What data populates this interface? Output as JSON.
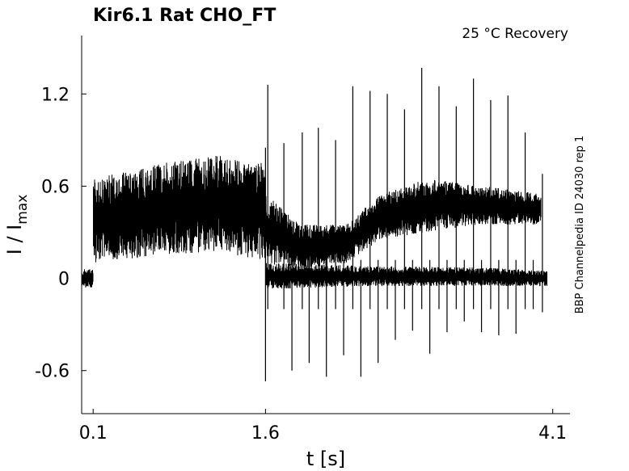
{
  "chart_data": {
    "type": "line",
    "title": "Kir6.1  Rat  CHO_FT",
    "condition": "25 °C  Recovery",
    "side_label": "BBP Channelpedia ID 24030 rep 1",
    "xlabel": "t [s]",
    "ylabel": "I / I",
    "ylabel_sub": "max",
    "xlim": [
      0.0,
      4.25
    ],
    "ylim": [
      -0.88,
      1.58
    ],
    "xticks": [
      {
        "value": 0.1,
        "label": "0.1"
      },
      {
        "value": 1.6,
        "label": "1.6"
      },
      {
        "value": 4.1,
        "label": "4.1"
      }
    ],
    "yticks": [
      {
        "value": 1.2,
        "label": "1.2"
      },
      {
        "value": 0.6,
        "label": "0.6"
      },
      {
        "value": 0,
        "label": "0"
      },
      {
        "value": -0.6,
        "label": "-0.6"
      }
    ],
    "grid": false,
    "line_color": "#000000",
    "bands": [
      {
        "x": [
          0.0,
          0.1
        ],
        "low": [
          -0.06,
          -0.06
        ],
        "high": [
          0.06,
          0.06
        ]
      },
      {
        "x": [
          0.1,
          0.7,
          1.2,
          1.6
        ],
        "low": [
          0.1,
          0.15,
          0.18,
          0.1
        ],
        "high": [
          0.65,
          0.75,
          0.8,
          0.75
        ]
      },
      {
        "x": [
          1.6,
          2.5,
          3.5,
          4.05
        ],
        "low": [
          -0.07,
          -0.05,
          -0.05,
          -0.05
        ],
        "high": [
          0.1,
          0.08,
          0.07,
          0.05
        ]
      },
      {
        "x": [
          1.6,
          1.9,
          2.3,
          2.6,
          3.0,
          3.5,
          4.0
        ],
        "low": [
          0.1,
          0.05,
          0.1,
          0.25,
          0.3,
          0.35,
          0.35
        ],
        "high": [
          0.55,
          0.35,
          0.35,
          0.55,
          0.65,
          0.6,
          0.55
        ]
      }
    ],
    "spikes": [
      {
        "t": 1.6,
        "min": -0.67,
        "max": 0.85
      },
      {
        "t": 1.62,
        "min": -0.2,
        "max": 1.26
      },
      {
        "t": 1.76,
        "min": -0.2,
        "max": 0.88
      },
      {
        "t": 1.83,
        "min": -0.6,
        "max": 0.12
      },
      {
        "t": 1.92,
        "min": -0.2,
        "max": 0.95
      },
      {
        "t": 1.98,
        "min": -0.55,
        "max": 0.12
      },
      {
        "t": 2.06,
        "min": -0.2,
        "max": 0.98
      },
      {
        "t": 2.13,
        "min": -0.64,
        "max": 0.12
      },
      {
        "t": 2.21,
        "min": -0.2,
        "max": 0.9
      },
      {
        "t": 2.28,
        "min": -0.5,
        "max": 0.12
      },
      {
        "t": 2.36,
        "min": -0.2,
        "max": 1.25
      },
      {
        "t": 2.43,
        "min": -0.64,
        "max": 0.12
      },
      {
        "t": 2.51,
        "min": -0.2,
        "max": 1.22
      },
      {
        "t": 2.58,
        "min": -0.55,
        "max": 0.12
      },
      {
        "t": 2.66,
        "min": -0.2,
        "max": 1.2
      },
      {
        "t": 2.73,
        "min": -0.4,
        "max": 0.12
      },
      {
        "t": 2.81,
        "min": -0.2,
        "max": 1.1
      },
      {
        "t": 2.88,
        "min": -0.34,
        "max": 0.12
      },
      {
        "t": 2.96,
        "min": -0.2,
        "max": 1.37
      },
      {
        "t": 3.03,
        "min": -0.49,
        "max": 0.12
      },
      {
        "t": 3.11,
        "min": -0.2,
        "max": 1.25
      },
      {
        "t": 3.18,
        "min": -0.35,
        "max": 0.12
      },
      {
        "t": 3.26,
        "min": -0.2,
        "max": 1.12
      },
      {
        "t": 3.33,
        "min": -0.28,
        "max": 0.12
      },
      {
        "t": 3.41,
        "min": -0.2,
        "max": 1.3
      },
      {
        "t": 3.48,
        "min": -0.35,
        "max": 0.12
      },
      {
        "t": 3.56,
        "min": -0.2,
        "max": 1.16
      },
      {
        "t": 3.63,
        "min": -0.37,
        "max": 0.12
      },
      {
        "t": 3.71,
        "min": -0.2,
        "max": 1.19
      },
      {
        "t": 3.78,
        "min": -0.36,
        "max": 0.12
      },
      {
        "t": 3.86,
        "min": -0.2,
        "max": 0.95
      },
      {
        "t": 3.93,
        "min": -0.2,
        "max": 0.12
      },
      {
        "t": 4.01,
        "min": -0.22,
        "max": 0.68
      }
    ]
  }
}
